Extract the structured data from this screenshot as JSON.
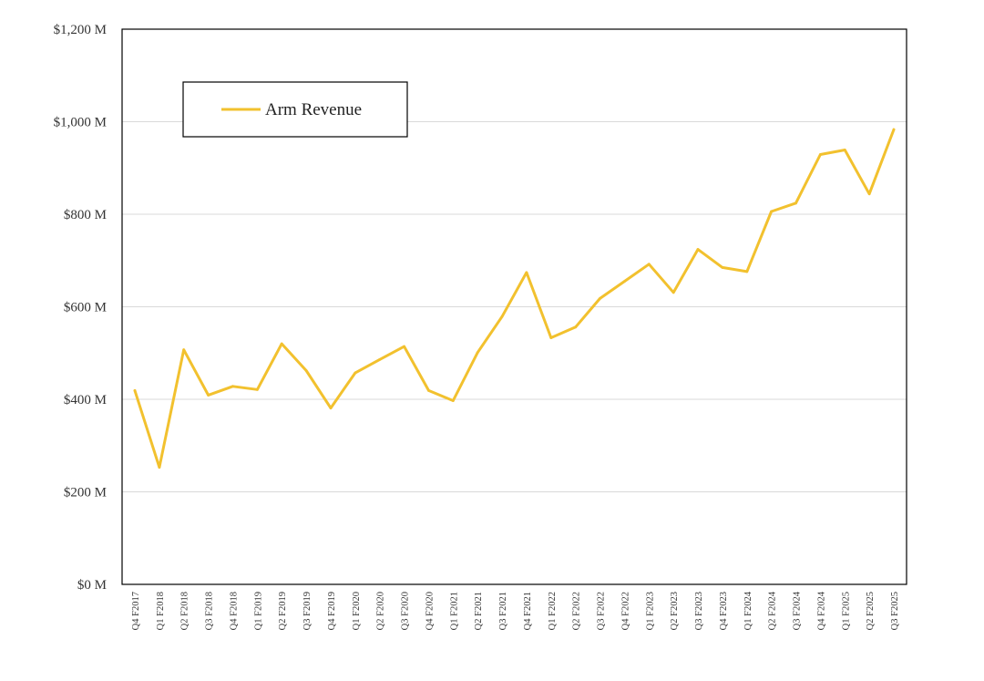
{
  "chart_data": {
    "type": "line",
    "title": "",
    "xlabel": "",
    "ylabel": "",
    "categories": [
      "Q4 F2017",
      "Q1 F2018",
      "Q2 F2018",
      "Q3 F2018",
      "Q4 F2018",
      "Q1 F2019",
      "Q2 F2019",
      "Q3 F2019",
      "Q4 F2019",
      "Q1 F2020",
      "Q2 F2020",
      "Q3 F2020",
      "Q4 F2020",
      "Q1 F2021",
      "Q2 F2021",
      "Q3 F2021",
      "Q4 F2021",
      "Q1 F2022",
      "Q2 F2022",
      "Q3 F2022",
      "Q4 F2022",
      "Q1 F2023",
      "Q2 F2023",
      "Q3 F2023",
      "Q4 F2023",
      "Q1 F2024",
      "Q2 F2024",
      "Q3 F2024",
      "Q4 F2024",
      "Q1 F2025",
      "Q2 F2025",
      "Q3 F2025"
    ],
    "series": [
      {
        "name": "Arm Revenue",
        "color": "#f2c12e",
        "values": [
          419,
          253,
          507,
          409,
          428,
          421,
          520,
          462,
          381,
          457,
          486,
          514,
          419,
          397,
          501,
          579,
          674,
          533,
          556,
          618,
          655,
          692,
          631,
          724,
          685,
          676,
          806,
          824,
          929,
          939,
          844,
          983
        ]
      }
    ],
    "ylim": [
      0,
      1200
    ],
    "yticks": [
      0,
      200,
      400,
      600,
      800,
      1000,
      1200
    ],
    "ytick_labels": [
      "$0 M",
      "$200 M",
      "$400 M",
      "$600 M",
      "$800 M",
      "$1,000 M",
      "$1,200 M"
    ],
    "grid": true,
    "legend": {
      "placement": "top-left",
      "entries": [
        "Arm Revenue"
      ]
    },
    "colors": {
      "gridline": "#d9d9d9",
      "frame": "#000000",
      "line": "#f2c12e"
    }
  }
}
